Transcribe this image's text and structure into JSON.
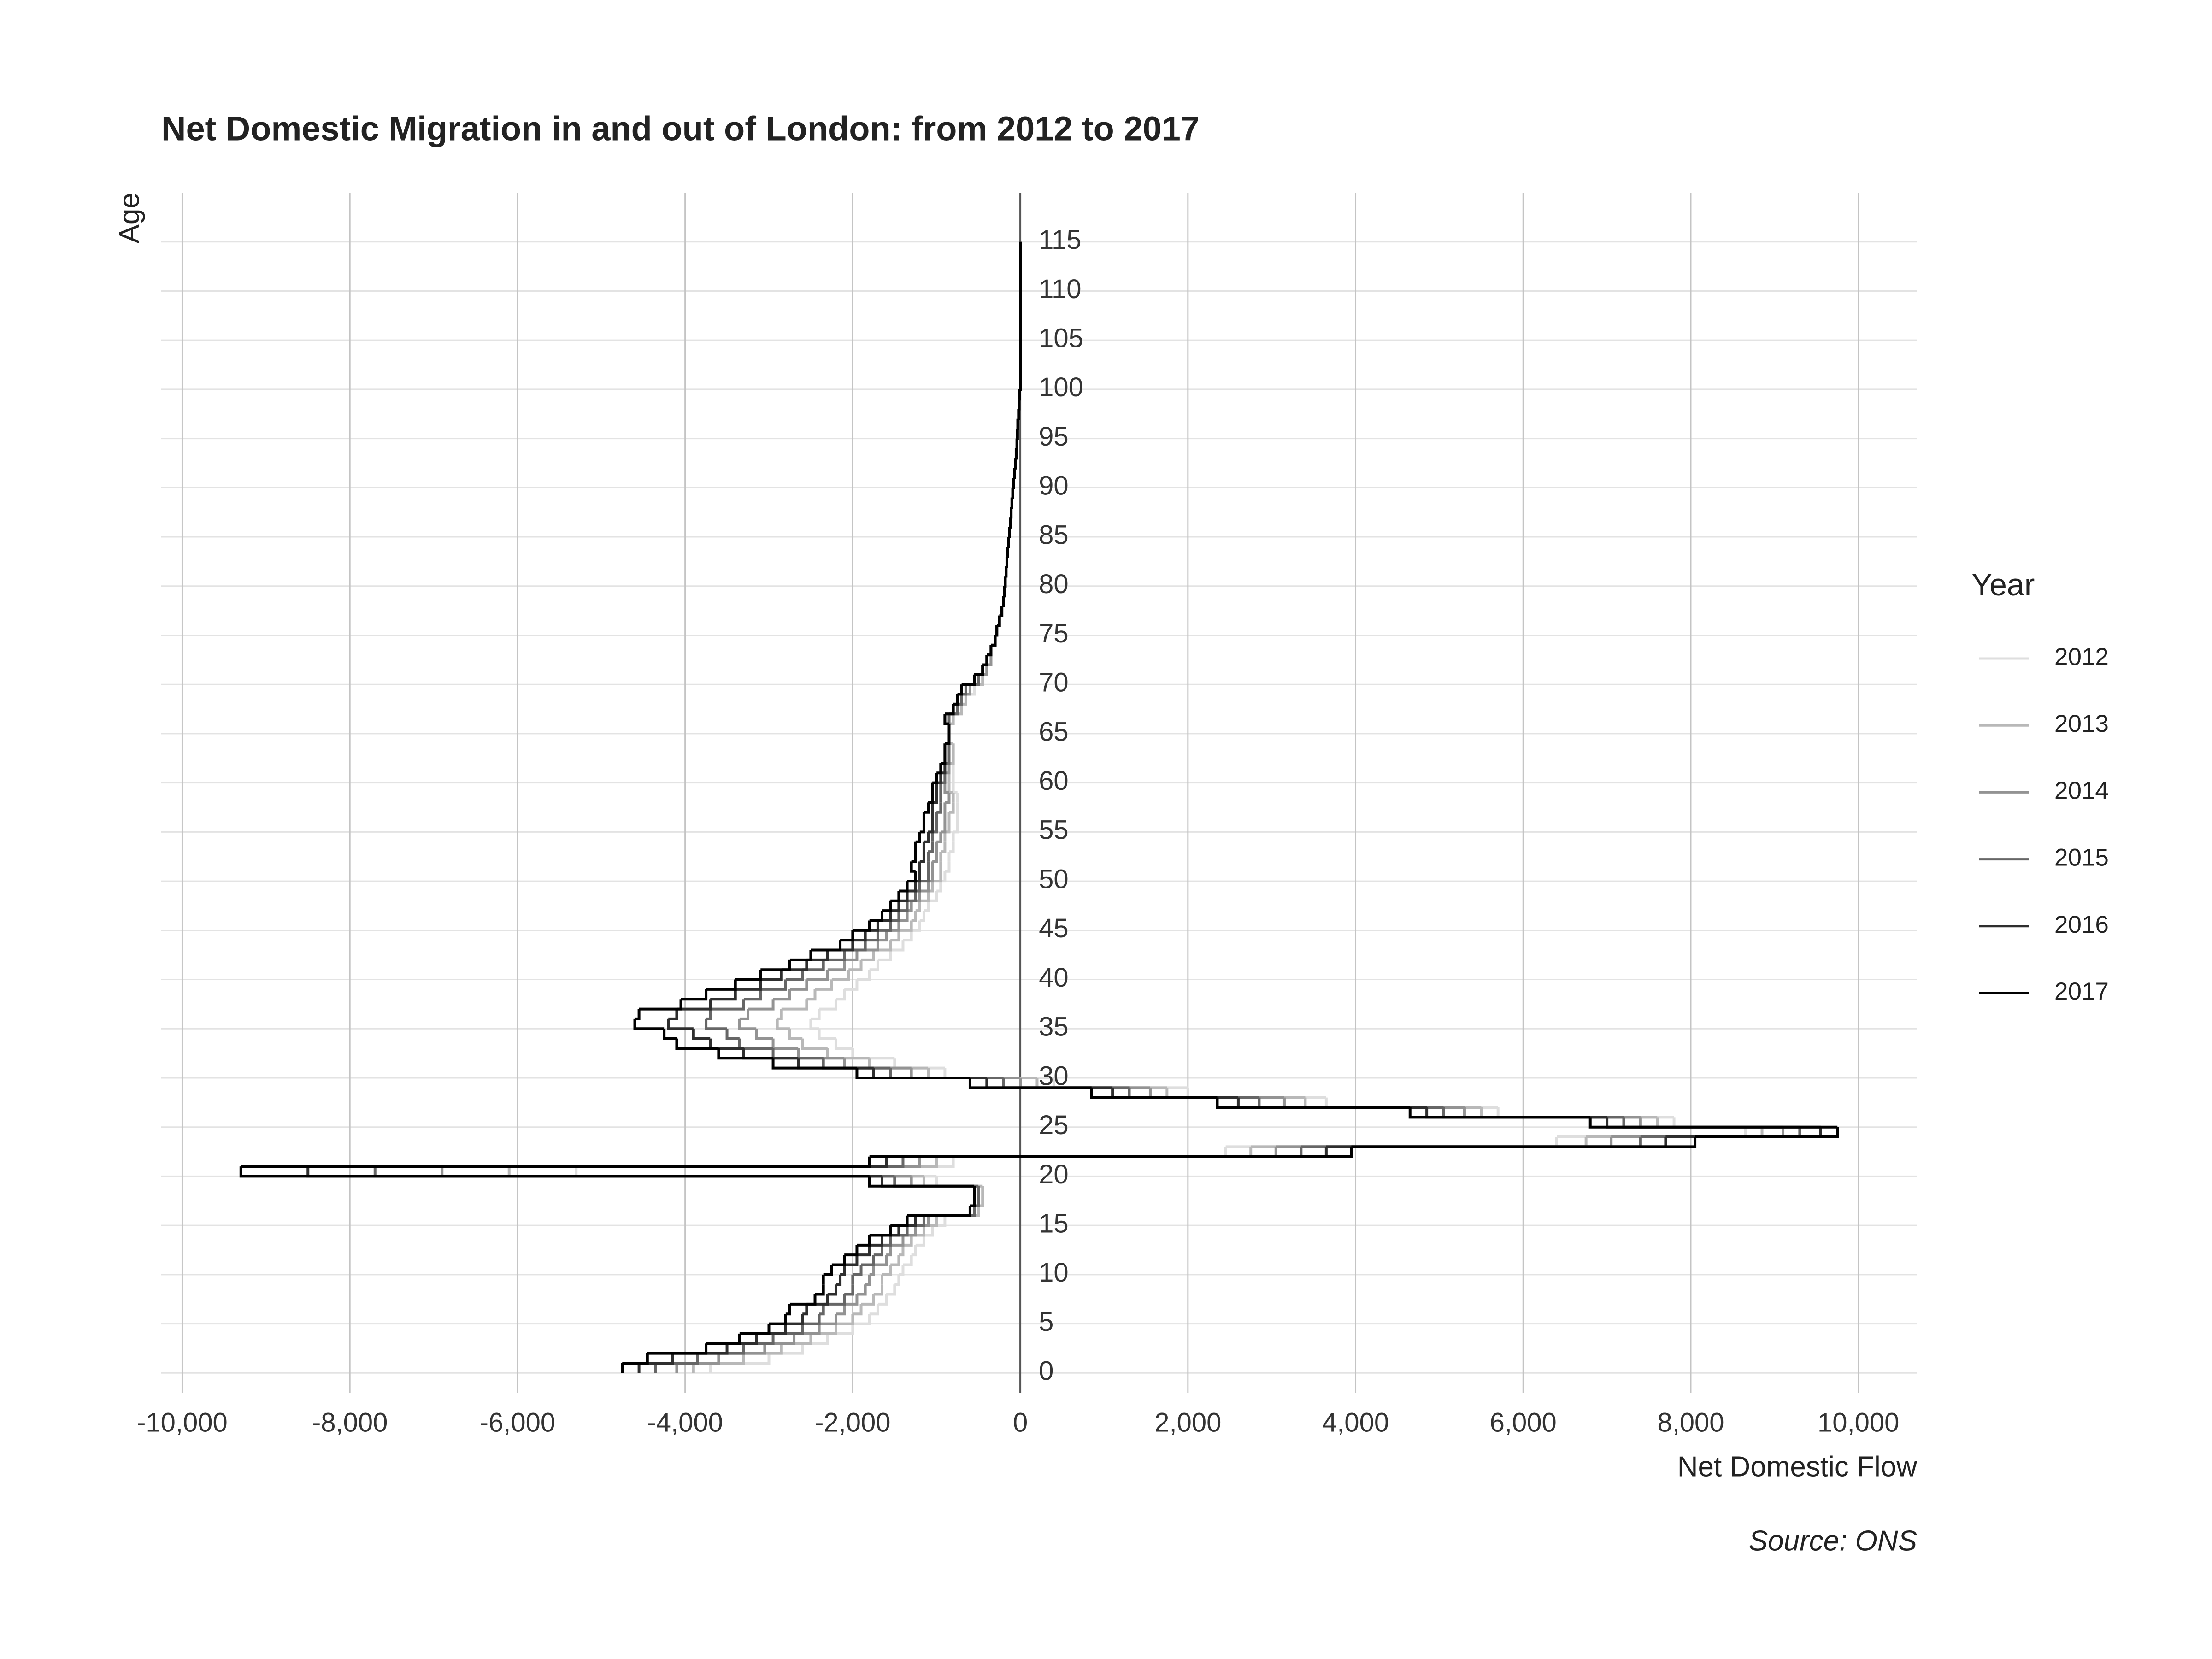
{
  "chart_data": {
    "type": "step",
    "title": "Net Domestic Migration in and out of London: from 2012 to 2017",
    "xlabel": "Net Domestic Flow",
    "ylabel": "Age",
    "caption": "Source: ONS",
    "legend_title": "Year",
    "legend": "right",
    "grid": true,
    "xlim": [
      -10250,
      10700
    ],
    "ylim": [
      -2,
      120
    ],
    "xticks": [
      {
        "value": -10000,
        "label": "-10,000"
      },
      {
        "value": -8000,
        "label": "-8,000"
      },
      {
        "value": -6000,
        "label": "-6,000"
      },
      {
        "value": -4000,
        "label": "-4,000"
      },
      {
        "value": -2000,
        "label": "-2,000"
      },
      0,
      {
        "value": 2000,
        "label": "2,000"
      },
      {
        "value": 4000,
        "label": "4,000"
      },
      {
        "value": 6000,
        "label": "6,000"
      },
      {
        "value": 8000,
        "label": "8,000"
      },
      {
        "value": 10000,
        "label": "10,000"
      }
    ],
    "yticks": [
      0,
      5,
      10,
      15,
      20,
      25,
      30,
      35,
      40,
      45,
      50,
      55,
      60,
      65,
      70,
      75,
      80,
      85,
      90,
      95,
      100,
      105,
      110,
      115
    ],
    "x": [
      0,
      1,
      2,
      3,
      4,
      5,
      6,
      7,
      8,
      9,
      10,
      11,
      12,
      13,
      14,
      15,
      16,
      17,
      18,
      19,
      20,
      21,
      22,
      23,
      24,
      25,
      26,
      27,
      28,
      29,
      30,
      31,
      32,
      33,
      34,
      35,
      36,
      37,
      38,
      39,
      40,
      41,
      42,
      43,
      44,
      45,
      46,
      47,
      48,
      49,
      50,
      51,
      52,
      53,
      54,
      55,
      56,
      57,
      58,
      59,
      60,
      61,
      62,
      63,
      64,
      65,
      66,
      67,
      68,
      69,
      70,
      71,
      72,
      73,
      74,
      75,
      76,
      77,
      78,
      79,
      80,
      81,
      82,
      83,
      84,
      85,
      86,
      87,
      88,
      89,
      90,
      91,
      92,
      93,
      94,
      95,
      96,
      97,
      98,
      99,
      100,
      115
    ],
    "series": [
      {
        "name": "2012",
        "color": "#dedede",
        "values": [
          -3700,
          -3000,
          -2600,
          -2300,
          -2000,
          -1800,
          -1700,
          -1600,
          -1500,
          -1450,
          -1400,
          -1300,
          -1250,
          -1150,
          -1050,
          -900,
          -500,
          -450,
          -450,
          -1000,
          -5300,
          -800,
          2450,
          6400,
          8650,
          7800,
          5700,
          3650,
          2000,
          400,
          -900,
          -1500,
          -2000,
          -2200,
          -2400,
          -2500,
          -2400,
          -2200,
          -2100,
          -1950,
          -1800,
          -1700,
          -1550,
          -1400,
          -1300,
          -1200,
          -1150,
          -1100,
          -1000,
          -950,
          -900,
          -850,
          -850,
          -800,
          -800,
          -750,
          -750,
          -750,
          -750,
          -800,
          -800,
          -800,
          -800,
          -800,
          -850,
          -850,
          -800,
          -700,
          -650,
          -550,
          -450,
          -400,
          -350,
          -350,
          -300,
          -280,
          -250,
          -220,
          -200,
          -190,
          -180,
          -170,
          -160,
          -150,
          -140,
          -130,
          -120,
          -110,
          -100,
          -90,
          -80,
          -70,
          -60,
          -50,
          -40,
          -35,
          -30,
          -20,
          -15,
          -10,
          0,
          0
        ]
      },
      {
        "name": "2013",
        "color": "#b8b8b8",
        "values": [
          -3900,
          -3300,
          -2850,
          -2500,
          -2200,
          -2000,
          -1900,
          -1750,
          -1650,
          -1650,
          -1550,
          -1450,
          -1400,
          -1300,
          -1150,
          -1000,
          -500,
          -450,
          -450,
          -1150,
          -6100,
          -1000,
          2750,
          6750,
          8850,
          7600,
          5500,
          3400,
          1750,
          200,
          -1100,
          -1800,
          -2300,
          -2600,
          -2750,
          -2900,
          -2850,
          -2550,
          -2450,
          -2250,
          -2050,
          -1900,
          -1750,
          -1550,
          -1450,
          -1300,
          -1250,
          -1200,
          -1100,
          -1050,
          -950,
          -950,
          -950,
          -900,
          -900,
          -850,
          -850,
          -800,
          -800,
          -850,
          -850,
          -850,
          -800,
          -800,
          -850,
          -850,
          -800,
          -700,
          -650,
          -600,
          -450,
          -400,
          -350,
          -350,
          -300,
          -280,
          -250,
          -220,
          -200,
          -190,
          -180,
          -170,
          -160,
          -150,
          -140,
          -130,
          -120,
          -110,
          -100,
          -90,
          -80,
          -70,
          -60,
          -50,
          -40,
          -35,
          -30,
          -20,
          -15,
          -10,
          0,
          0
        ]
      },
      {
        "name": "2014",
        "color": "#939393",
        "values": [
          -4100,
          -3600,
          -3050,
          -2700,
          -2400,
          -2200,
          -2100,
          -1950,
          -1850,
          -1800,
          -1750,
          -1600,
          -1550,
          -1400,
          -1250,
          -1100,
          -550,
          -500,
          -500,
          -1300,
          -6900,
          -1200,
          3050,
          7050,
          9100,
          7400,
          5300,
          3150,
          1550,
          0,
          -1300,
          -2100,
          -2650,
          -2950,
          -3150,
          -3350,
          -3250,
          -2950,
          -2750,
          -2550,
          -2300,
          -2100,
          -1950,
          -1700,
          -1600,
          -1450,
          -1350,
          -1300,
          -1200,
          -1100,
          -1050,
          -1050,
          -1000,
          -1000,
          -950,
          -900,
          -900,
          -900,
          -850,
          -900,
          -900,
          -850,
          -850,
          -850,
          -850,
          -850,
          -850,
          -750,
          -700,
          -600,
          -500,
          -400,
          -350,
          -350,
          -300,
          -280,
          -250,
          -220,
          -200,
          -190,
          -180,
          -170,
          -160,
          -150,
          -140,
          -130,
          -120,
          -110,
          -100,
          -90,
          -80,
          -70,
          -60,
          -50,
          -40,
          -35,
          -30,
          -20,
          -15,
          -10,
          0,
          0
        ]
      },
      {
        "name": "2015",
        "color": "#666666",
        "values": [
          -4350,
          -3850,
          -3300,
          -2950,
          -2600,
          -2400,
          -2350,
          -2100,
          -2000,
          -2000,
          -1900,
          -1750,
          -1650,
          -1550,
          -1350,
          -1150,
          -550,
          -500,
          -500,
          -1500,
          -7700,
          -1400,
          3350,
          7400,
          9300,
          7200,
          5050,
          2850,
          1300,
          -200,
          -1550,
          -2350,
          -2950,
          -3350,
          -3500,
          -3750,
          -3700,
          -3300,
          -3100,
          -2800,
          -2600,
          -2350,
          -2100,
          -1850,
          -1700,
          -1550,
          -1450,
          -1350,
          -1250,
          -1200,
          -1100,
          -1100,
          -1100,
          -1050,
          -1050,
          -1000,
          -1000,
          -950,
          -950,
          -950,
          -900,
          -900,
          -850,
          -850,
          -850,
          -850,
          -850,
          -750,
          -700,
          -650,
          -500,
          -450,
          -400,
          -350,
          -300,
          -280,
          -250,
          -220,
          -200,
          -190,
          -180,
          -170,
          -160,
          -150,
          -140,
          -130,
          -120,
          -110,
          -100,
          -90,
          -80,
          -70,
          -60,
          -50,
          -40,
          -35,
          -30,
          -20,
          -15,
          -10,
          0,
          0
        ]
      },
      {
        "name": "2016",
        "color": "#2e2e2e",
        "values": [
          -4550,
          -4150,
          -3500,
          -3150,
          -2800,
          -2600,
          -2550,
          -2300,
          -2200,
          -2150,
          -2100,
          -1950,
          -1800,
          -1650,
          -1450,
          -1250,
          -600,
          -550,
          -550,
          -1650,
          -8500,
          -1600,
          3650,
          7700,
          9550,
          7000,
          4850,
          2600,
          1100,
          -400,
          -1750,
          -2650,
          -3300,
          -3700,
          -3900,
          -4200,
          -4100,
          -3700,
          -3400,
          -3100,
          -2850,
          -2550,
          -2300,
          -2000,
          -1850,
          -1700,
          -1550,
          -1450,
          -1350,
          -1250,
          -1200,
          -1200,
          -1150,
          -1150,
          -1100,
          -1050,
          -1050,
          -1050,
          -1000,
          -1000,
          -950,
          -900,
          -900,
          -900,
          -850,
          -850,
          -900,
          -800,
          -750,
          -700,
          -550,
          -450,
          -400,
          -350,
          -300,
          -280,
          -250,
          -220,
          -200,
          -190,
          -180,
          -170,
          -160,
          -150,
          -140,
          -130,
          -120,
          -110,
          -100,
          -90,
          -80,
          -70,
          -60,
          -50,
          -40,
          -35,
          -30,
          -20,
          -15,
          -10,
          0,
          0
        ]
      },
      {
        "name": "2017",
        "color": "#000000",
        "values": [
          -4750,
          -4450,
          -3750,
          -3350,
          -3000,
          -2800,
          -2750,
          -2450,
          -2350,
          -2350,
          -2250,
          -2100,
          -1950,
          -1800,
          -1550,
          -1350,
          -600,
          -550,
          -550,
          -1800,
          -9300,
          -1800,
          3950,
          8050,
          9750,
          6800,
          4650,
          2350,
          850,
          -600,
          -1950,
          -2950,
          -3600,
          -4100,
          -4250,
          -4600,
          -4550,
          -4050,
          -3750,
          -3400,
          -3100,
          -2750,
          -2500,
          -2150,
          -2000,
          -1800,
          -1650,
          -1550,
          -1450,
          -1350,
          -1250,
          -1300,
          -1250,
          -1250,
          -1200,
          -1150,
          -1150,
          -1100,
          -1050,
          -1050,
          -1000,
          -950,
          -900,
          -900,
          -850,
          -850,
          -900,
          -800,
          -750,
          -700,
          -550,
          -450,
          -400,
          -350,
          -300,
          -280,
          -250,
          -220,
          -200,
          -190,
          -180,
          -170,
          -160,
          -150,
          -140,
          -130,
          -120,
          -110,
          -100,
          -90,
          -80,
          -70,
          -60,
          -50,
          -40,
          -35,
          -30,
          -20,
          -15,
          -10,
          0,
          0
        ]
      }
    ]
  }
}
